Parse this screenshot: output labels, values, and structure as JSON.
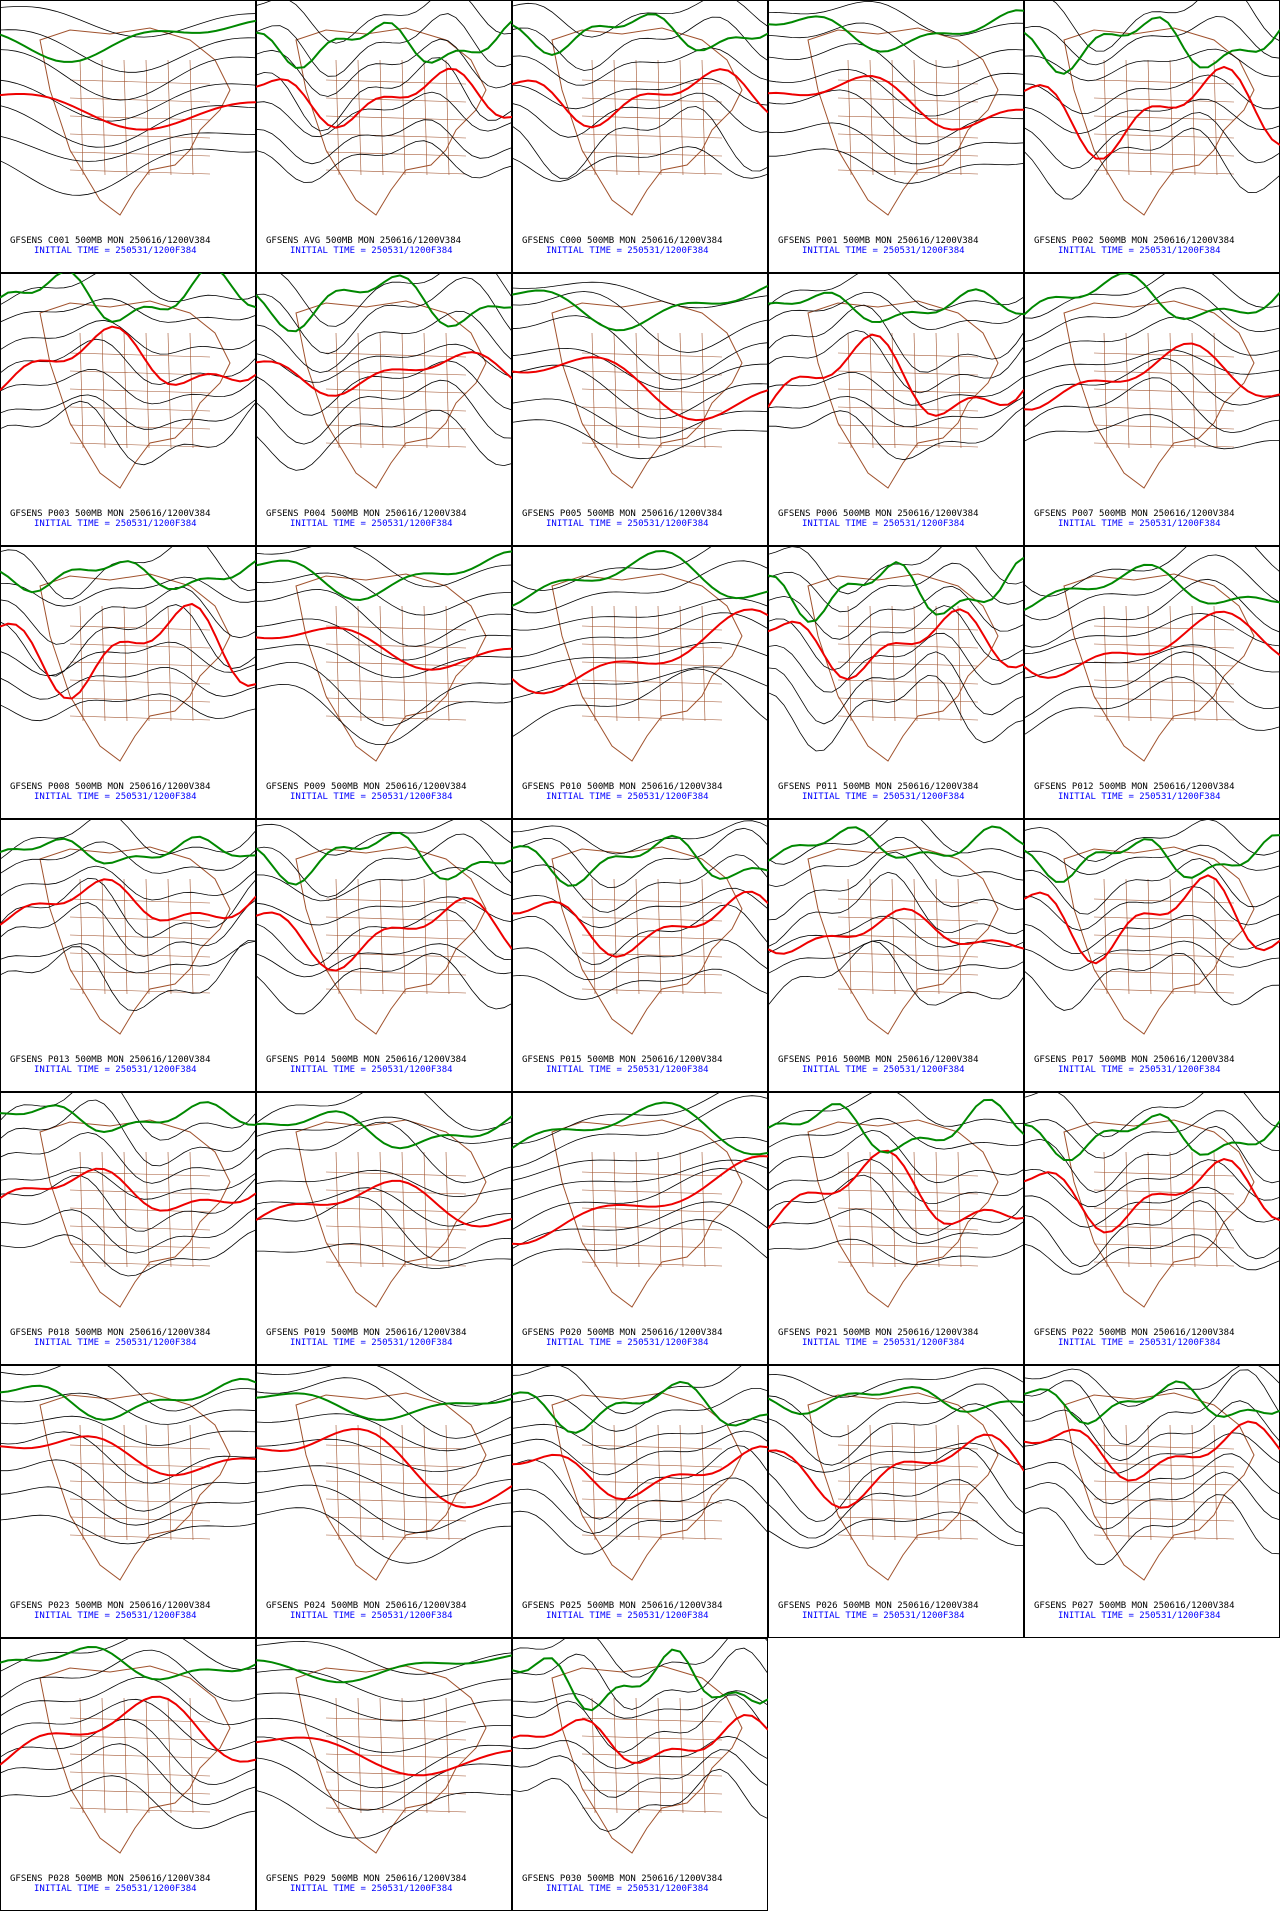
{
  "panels": [
    {
      "line1": "GFSENS C001 500MB MON 250616/1200V384",
      "line2": "INITIAL TIME = 250531/1200F384"
    },
    {
      "line1": "GFSENS AVG 500MB MON 250616/1200V384",
      "line2": "INITIAL TIME = 250531/1200F384"
    },
    {
      "line1": "GFSENS C000 500MB MON 250616/1200V384",
      "line2": "INITIAL TIME = 250531/1200F384"
    },
    {
      "line1": "GFSENS P001 500MB MON 250616/1200V384",
      "line2": "INITIAL TIME = 250531/1200F384"
    },
    {
      "line1": "GFSENS P002 500MB MON 250616/1200V384",
      "line2": "INITIAL TIME = 250531/1200F384"
    },
    {
      "line1": "GFSENS P003 500MB MON 250616/1200V384",
      "line2": "INITIAL TIME = 250531/1200F384"
    },
    {
      "line1": "GFSENS P004 500MB MON 250616/1200V384",
      "line2": "INITIAL TIME = 250531/1200F384"
    },
    {
      "line1": "GFSENS P005 500MB MON 250616/1200V384",
      "line2": "INITIAL TIME = 250531/1200F384"
    },
    {
      "line1": "GFSENS P006 500MB MON 250616/1200V384",
      "line2": "INITIAL TIME = 250531/1200F384"
    },
    {
      "line1": "GFSENS P007 500MB MON 250616/1200V384",
      "line2": "INITIAL TIME = 250531/1200F384"
    },
    {
      "line1": "GFSENS P008 500MB MON 250616/1200V384",
      "line2": "INITIAL TIME = 250531/1200F384"
    },
    {
      "line1": "GFSENS P009 500MB MON 250616/1200V384",
      "line2": "INITIAL TIME = 250531/1200F384"
    },
    {
      "line1": "GFSENS P010 500MB MON 250616/1200V384",
      "line2": "INITIAL TIME = 250531/1200F384"
    },
    {
      "line1": "GFSENS P011 500MB MON 250616/1200V384",
      "line2": "INITIAL TIME = 250531/1200F384"
    },
    {
      "line1": "GFSENS P012 500MB MON 250616/1200V384",
      "line2": "INITIAL TIME = 250531/1200F384"
    },
    {
      "line1": "GFSENS P013 500MB MON 250616/1200V384",
      "line2": "INITIAL TIME = 250531/1200F384"
    },
    {
      "line1": "GFSENS P014 500MB MON 250616/1200V384",
      "line2": "INITIAL TIME = 250531/1200F384"
    },
    {
      "line1": "GFSENS P015 500MB MON 250616/1200V384",
      "line2": "INITIAL TIME = 250531/1200F384"
    },
    {
      "line1": "GFSENS P016 500MB MON 250616/1200V384",
      "line2": "INITIAL TIME = 250531/1200F384"
    },
    {
      "line1": "GFSENS P017 500MB MON 250616/1200V384",
      "line2": "INITIAL TIME = 250531/1200F384"
    },
    {
      "line1": "GFSENS P018 500MB MON 250616/1200V384",
      "line2": "INITIAL TIME = 250531/1200F384"
    },
    {
      "line1": "GFSENS P019 500MB MON 250616/1200V384",
      "line2": "INITIAL TIME = 250531/1200F384"
    },
    {
      "line1": "GFSENS P020 500MB MON 250616/1200V384",
      "line2": "INITIAL TIME = 250531/1200F384"
    },
    {
      "line1": "GFSENS P021 500MB MON 250616/1200V384",
      "line2": "INITIAL TIME = 250531/1200F384"
    },
    {
      "line1": "GFSENS P022 500MB MON 250616/1200V384",
      "line2": "INITIAL TIME = 250531/1200F384"
    },
    {
      "line1": "GFSENS P023 500MB MON 250616/1200V384",
      "line2": "INITIAL TIME = 250531/1200F384"
    },
    {
      "line1": "GFSENS P024 500MB MON 250616/1200V384",
      "line2": "INITIAL TIME = 250531/1200F384"
    },
    {
      "line1": "GFSENS P025 500MB MON 250616/1200V384",
      "line2": "INITIAL TIME = 250531/1200F384"
    },
    {
      "line1": "GFSENS P026 500MB MON 250616/1200V384",
      "line2": "INITIAL TIME = 250531/1200F384"
    },
    {
      "line1": "GFSENS P027 500MB MON 250616/1200V384",
      "line2": "INITIAL TIME = 250531/1200F384"
    },
    {
      "line1": "GFSENS P028 500MB MON 250616/1200V384",
      "line2": "INITIAL TIME = 250531/1200F384"
    },
    {
      "line1": "GFSENS P029 500MB MON 250616/1200V384",
      "line2": "INITIAL TIME = 250531/1200F384"
    },
    {
      "line1": "GFSENS P030 500MB MON 250616/1200V384",
      "line2": "INITIAL TIME = 250531/1200F384"
    }
  ]
}
